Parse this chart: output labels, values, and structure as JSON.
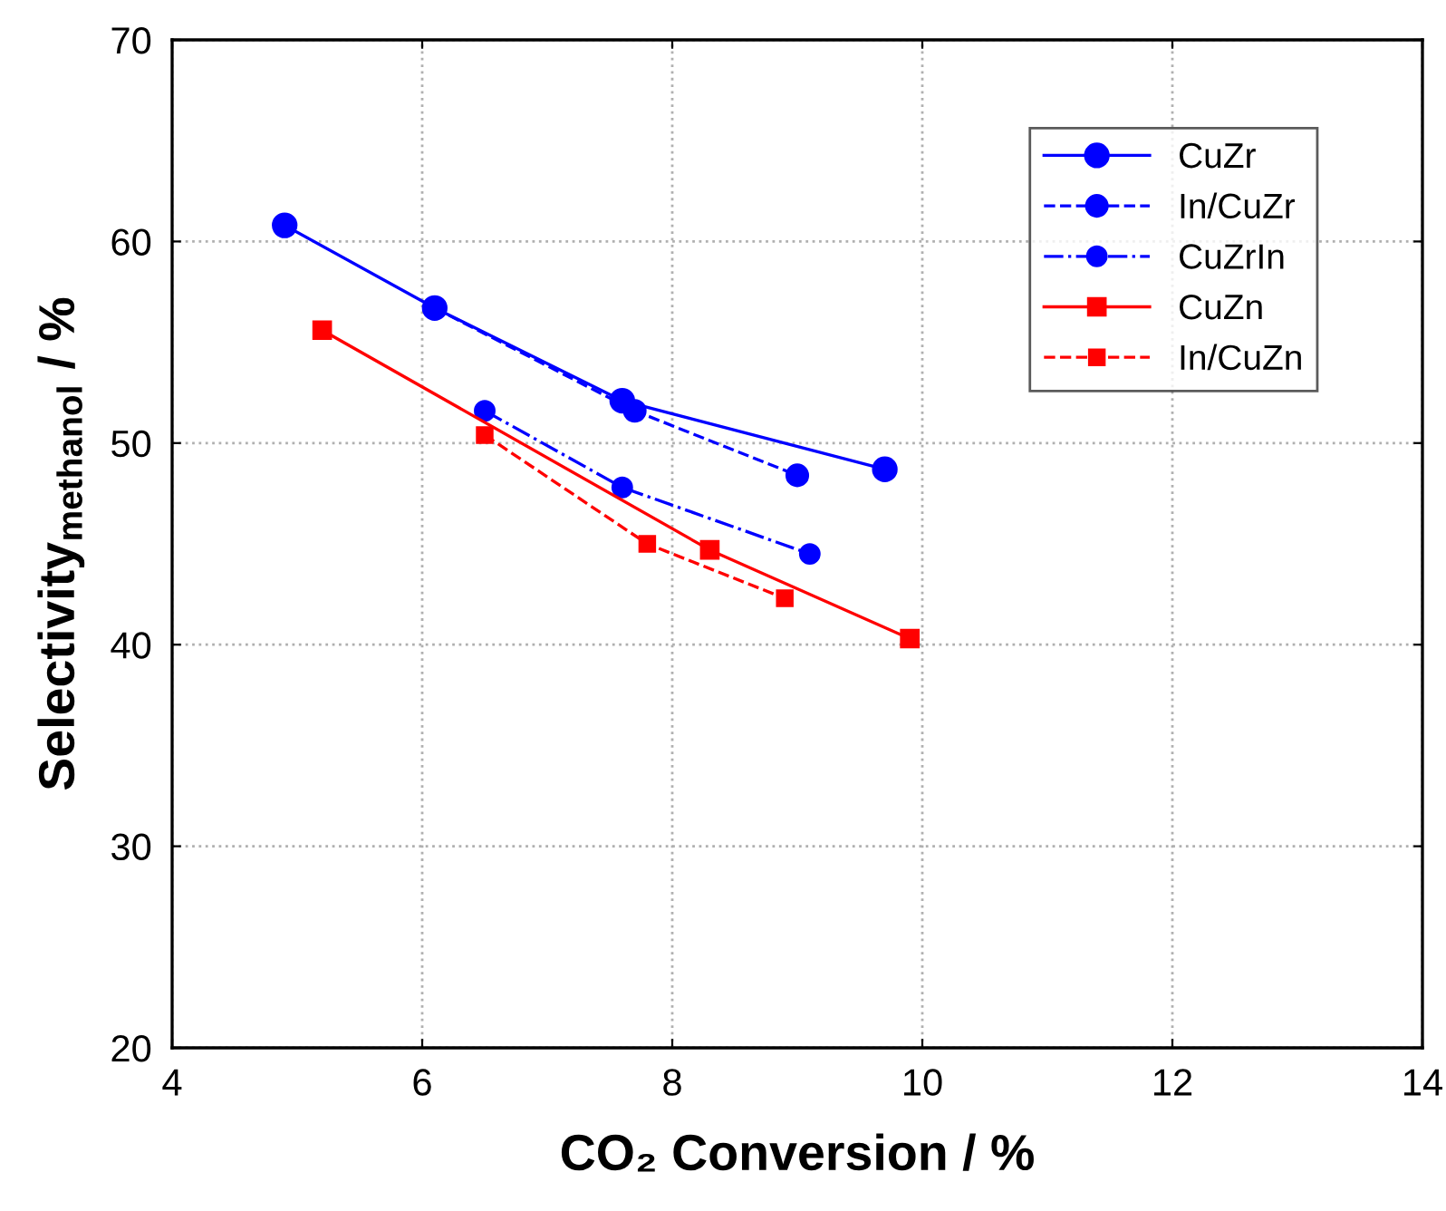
{
  "chart_data": {
    "type": "line",
    "xlabel": "CO₂ Conversion / %",
    "ylabel": "Selectivity$_{methanol}$ / %",
    "xlim": [
      4,
      14
    ],
    "xticks": [
      4,
      6,
      8,
      10,
      12,
      14
    ],
    "ylim": [
      20,
      70
    ],
    "yticks": [
      20,
      30,
      40,
      50,
      60,
      70
    ],
    "grid": true,
    "legend": "top right",
    "series": [
      {
        "name": "CuZr",
        "color": "#0000ff",
        "marker": "circle",
        "line_style": "solid",
        "x": [
          4.9,
          6.1,
          7.6,
          9.7
        ],
        "values": [
          60.8,
          56.7,
          52.1,
          48.7
        ]
      },
      {
        "name": "In/CuZr",
        "color": "#0000ff",
        "marker": "circle",
        "line_style": "dashed",
        "x": [
          6.1,
          7.7,
          9.0
        ],
        "values": [
          56.7,
          51.6,
          48.4
        ]
      },
      {
        "name": "CuZrIn",
        "color": "#0000ff",
        "marker": "circle",
        "line_style": "dashdot",
        "x": [
          6.5,
          7.6,
          9.1
        ],
        "values": [
          51.6,
          47.8,
          44.5
        ]
      },
      {
        "name": "CuZn",
        "color": "#ff0000",
        "marker": "square",
        "line_style": "solid",
        "x": [
          5.2,
          8.3,
          9.9
        ],
        "values": [
          55.6,
          44.7,
          40.3
        ]
      },
      {
        "name": "In/CuZn",
        "color": "#ff0000",
        "marker": "square",
        "line_style": "dashed",
        "x": [
          6.5,
          7.8,
          8.9
        ],
        "values": [
          50.4,
          45.0,
          42.3
        ]
      }
    ]
  }
}
